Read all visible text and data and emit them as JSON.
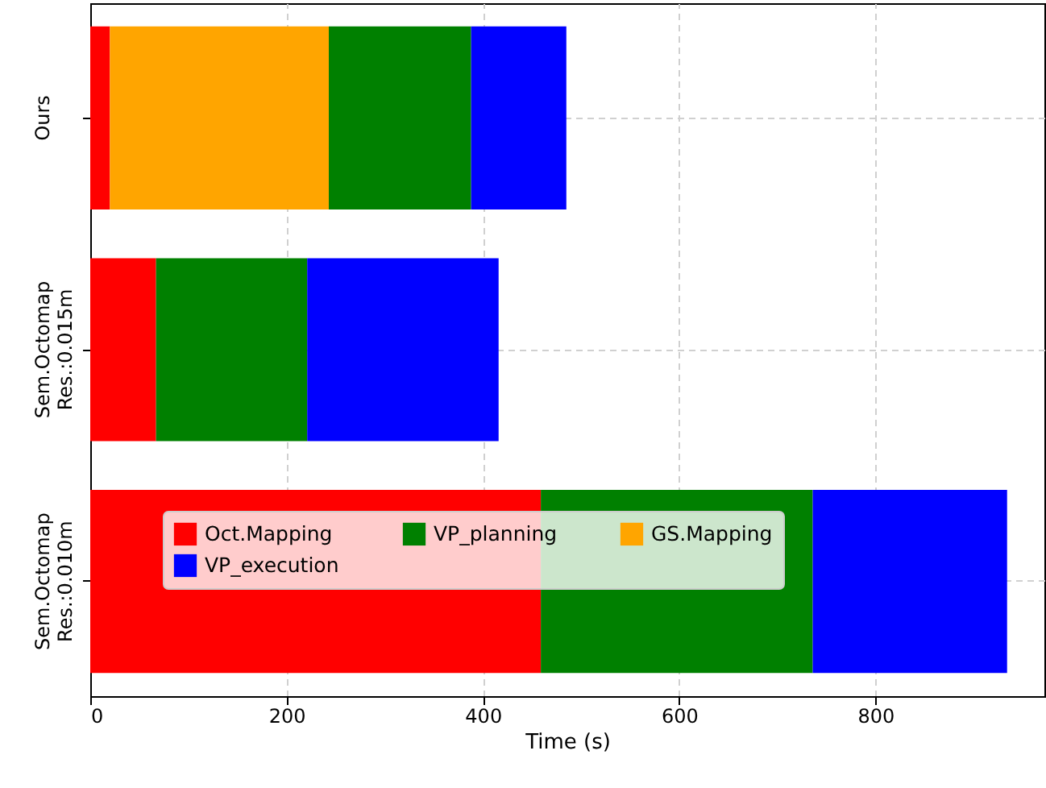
{
  "chart_data": {
    "type": "bar",
    "orientation": "horizontal",
    "stacked": true,
    "xlabel": "Time (s)",
    "categories": [
      "Ours",
      "Sem.Octomap\nRes.:0.015m",
      "Sem.Octomap\nRes.:0.010m"
    ],
    "series": [
      {
        "name": "Oct.Mapping",
        "color": "#ff0000",
        "values": [
          20,
          67,
          459
        ]
      },
      {
        "name": "GS.Mapping",
        "color": "#ffa500",
        "values": [
          223,
          null,
          null
        ]
      },
      {
        "name": "VP_planning",
        "color": "#008000",
        "values": [
          145,
          154,
          277
        ]
      },
      {
        "name": "VP_execution",
        "color": "#0000ff",
        "values": [
          97,
          195,
          198
        ]
      }
    ],
    "xlim": [
      0,
      972
    ],
    "xticks": [
      0,
      200,
      400,
      600,
      800
    ],
    "grid": true,
    "legend": "bottom"
  }
}
